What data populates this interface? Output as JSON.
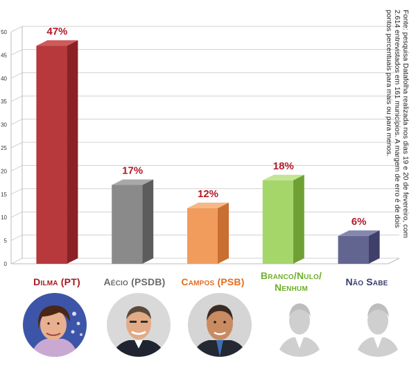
{
  "chart_data": {
    "type": "bar",
    "ylim": [
      0,
      50
    ],
    "yticks": [
      0,
      5,
      10,
      15,
      20,
      25,
      30,
      35,
      40,
      45,
      50
    ],
    "categories": [
      "Dilma (PT)",
      "Aécio (PSDB)",
      "Campos (PSB)",
      "Branco/Nulo/Nenhum",
      "Não Sabe"
    ],
    "values": [
      47,
      17,
      12,
      18,
      6
    ],
    "value_labels": [
      "47%",
      "17%",
      "12%",
      "18%",
      "6%"
    ],
    "grid": true,
    "style": "3d-columns"
  },
  "candidates": [
    {
      "label_lines": [
        "Dilma (PT)"
      ],
      "color": "#b9262d",
      "front": "#b7393c",
      "side": "#8a2126",
      "top": "#cf5a5b",
      "photo": "dilma-photo",
      "label_color": "#a5191f"
    },
    {
      "label_lines": [
        "Aécio (PSDB)"
      ],
      "color": "#6b6b6b",
      "front": "#8a8a8a",
      "side": "#5c5c5c",
      "top": "#a8a8a8",
      "photo": "aecio-photo",
      "label_color": "#6a6a6a"
    },
    {
      "label_lines": [
        "Campos (PSB)"
      ],
      "color": "#e8732c",
      "front": "#f19c5d",
      "side": "#c86f31",
      "top": "#f6b887",
      "photo": "campos-photo",
      "label_color": "#e26d22"
    },
    {
      "label_lines": [
        "Branco/Nulo/",
        "Nenhum"
      ],
      "color": "#77b530",
      "front": "#a5d66a",
      "side": "#6fa034",
      "top": "#c2e693",
      "photo": "silhouette-icon",
      "label_color": "#6fae2a"
    },
    {
      "label_lines": [
        "Não Sabe"
      ],
      "color": "#3f4476",
      "front": "#636591",
      "side": "#3e406a",
      "top": "#8587ad",
      "photo": "silhouette-icon",
      "label_color": "#373c6d"
    }
  ],
  "source_note": "Fonte: pesquisa Datafolha realizada nos dias 19 e 20 de fevereiro, com 2.614 entrevistados em 161 municípios. A margem de erro é de dois pontos percentuais para mais ou para menos.",
  "colors": {
    "value_label": "#b2192a",
    "grid": "#d0d0d0",
    "axis_text": "#333333"
  }
}
